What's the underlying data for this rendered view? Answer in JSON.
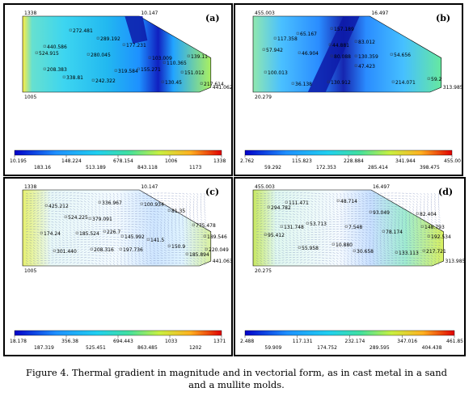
{
  "panels": [
    {
      "id": "a",
      "label": "(a)",
      "view": "magnitude",
      "corner_values": {
        "top_left": "1338",
        "top_right": "10.147",
        "bottom_left": "1005",
        "right_end": "441.062"
      },
      "contour_labels": [
        "440.586",
        "272.481",
        "289.192",
        "524.915",
        "177.231",
        "280.045",
        "208.383",
        "338.81",
        "242.322",
        "319.584",
        "155.271",
        "110.365",
        "151.012",
        "139.11",
        "130.45",
        "217.614",
        "103.009"
      ],
      "colorbar": {
        "upper_ticks": [
          "10.195",
          "148.224",
          "678.154",
          "1006",
          "1338"
        ],
        "lower_ticks": [
          "183.16",
          "513.189",
          "843.118",
          "1173"
        ]
      }
    },
    {
      "id": "b",
      "label": "(b)",
      "view": "magnitude",
      "corner_values": {
        "top_left": "455.003",
        "top_right": "16.497",
        "bottom_left": "20.279",
        "right_end": "313.985"
      },
      "contour_labels": [
        "117.358",
        "65.167",
        "157.189",
        "57.942",
        "44.881",
        "83.012",
        "46.904",
        "80.088",
        "130.359",
        "54.656",
        "100.013",
        "47.423",
        "36.138",
        "130.912",
        "214.071",
        "59.2"
      ],
      "colorbar": {
        "upper_ticks": [
          "2.762",
          "115.823",
          "228.884",
          "341.944",
          "455.00"
        ],
        "lower_ticks": [
          "59.292",
          "172.353",
          "285.414",
          "398.475"
        ]
      }
    },
    {
      "id": "c",
      "label": "(c)",
      "view": "vector",
      "corner_values": {
        "top_left": "1338",
        "top_right": "10.147",
        "bottom_left": "1005",
        "right_end": "441.063"
      },
      "contour_labels": [
        "425.212",
        "336.967",
        "100.934",
        "524.225",
        "379.091",
        "81.35",
        "775.478",
        "174.24",
        "145.992",
        "226.7",
        "189.546",
        "185.524",
        "141.5",
        "208.316",
        "220.049",
        "301.440",
        "197.736",
        "150.9",
        "185.894"
      ],
      "colorbar": {
        "upper_ticks": [
          "18.178",
          "356.38",
          "694.443",
          "1033",
          "1371"
        ],
        "lower_ticks": [
          "187.319",
          "525.451",
          "863.485",
          "1202"
        ]
      }
    },
    {
      "id": "d",
      "label": "(d)",
      "view": "vector",
      "corner_values": {
        "top_left": "455.003",
        "top_right": "16.497",
        "bottom_left": "20.275",
        "right_end": "313.985"
      },
      "contour_labels": [
        "294.782",
        "111.471",
        "48.714",
        "93.049",
        "82.404",
        "131.748",
        "53.713",
        "7.548",
        "148.793",
        "95.412",
        "78.174",
        "192.534",
        "55.958",
        "10.880",
        "30.658",
        "133.113",
        "217.721"
      ],
      "colorbar": {
        "upper_ticks": [
          "2.488",
          "117.131",
          "232.174",
          "347.016",
          "461.85"
        ],
        "lower_ticks": [
          "59.909",
          "174.752",
          "289.595",
          "404.438"
        ]
      }
    }
  ],
  "caption": {
    "line1": "Figure 4. Thermal gradient in magnitude and in vectorial form, as in cast metal in a sand",
    "line2": "and a mullite molds."
  }
}
